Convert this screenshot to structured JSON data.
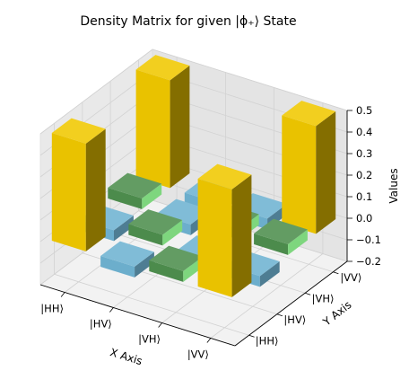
{
  "chart_data": {
    "type": "bar3d",
    "title": "Density Matrix for given |ϕ₊⟩ State",
    "xlabel": "X Axis",
    "ylabel": "Y Axis",
    "zlabel": "Values",
    "x_categories": [
      "|HH⟩",
      "|HV⟩",
      "|VH⟩",
      "|VV⟩"
    ],
    "y_categories": [
      "|HH⟩",
      "|HV⟩",
      "|VH⟩",
      "|VV⟩"
    ],
    "zlim": [
      -0.2,
      0.5
    ],
    "zticks": [
      -0.2,
      -0.1,
      0.0,
      0.1,
      0.2,
      0.3,
      0.4,
      0.5
    ],
    "grid": true,
    "colors": {
      "large": "#f0c800",
      "positive": "#4e8f4e",
      "negative": "#6fb3d2"
    },
    "bars": [
      {
        "x": "|HH⟩",
        "y": "|HH⟩",
        "value": 0.5
      },
      {
        "x": "|HH⟩",
        "y": "|HV⟩",
        "value": -0.05
      },
      {
        "x": "|HH⟩",
        "y": "|VH⟩",
        "value": 0.05
      },
      {
        "x": "|HH⟩",
        "y": "|VV⟩",
        "value": 0.5
      },
      {
        "x": "|HV⟩",
        "y": "|HH⟩",
        "value": -0.05
      },
      {
        "x": "|HV⟩",
        "y": "|HV⟩",
        "value": 0.05
      },
      {
        "x": "|HV⟩",
        "y": "|VH⟩",
        "value": -0.05
      },
      {
        "x": "|HV⟩",
        "y": "|VV⟩",
        "value": -0.05
      },
      {
        "x": "|VH⟩",
        "y": "|HH⟩",
        "value": 0.05
      },
      {
        "x": "|VH⟩",
        "y": "|HV⟩",
        "value": -0.05
      },
      {
        "x": "|VH⟩",
        "y": "|VH⟩",
        "value": 0.05
      },
      {
        "x": "|VH⟩",
        "y": "|VV⟩",
        "value": -0.05
      },
      {
        "x": "|VV⟩",
        "y": "|HH⟩",
        "value": 0.5
      },
      {
        "x": "|VV⟩",
        "y": "|HV⟩",
        "value": -0.05
      },
      {
        "x": "|VV⟩",
        "y": "|VH⟩",
        "value": 0.05
      },
      {
        "x": "|VV⟩",
        "y": "|VV⟩",
        "value": 0.5
      }
    ]
  }
}
